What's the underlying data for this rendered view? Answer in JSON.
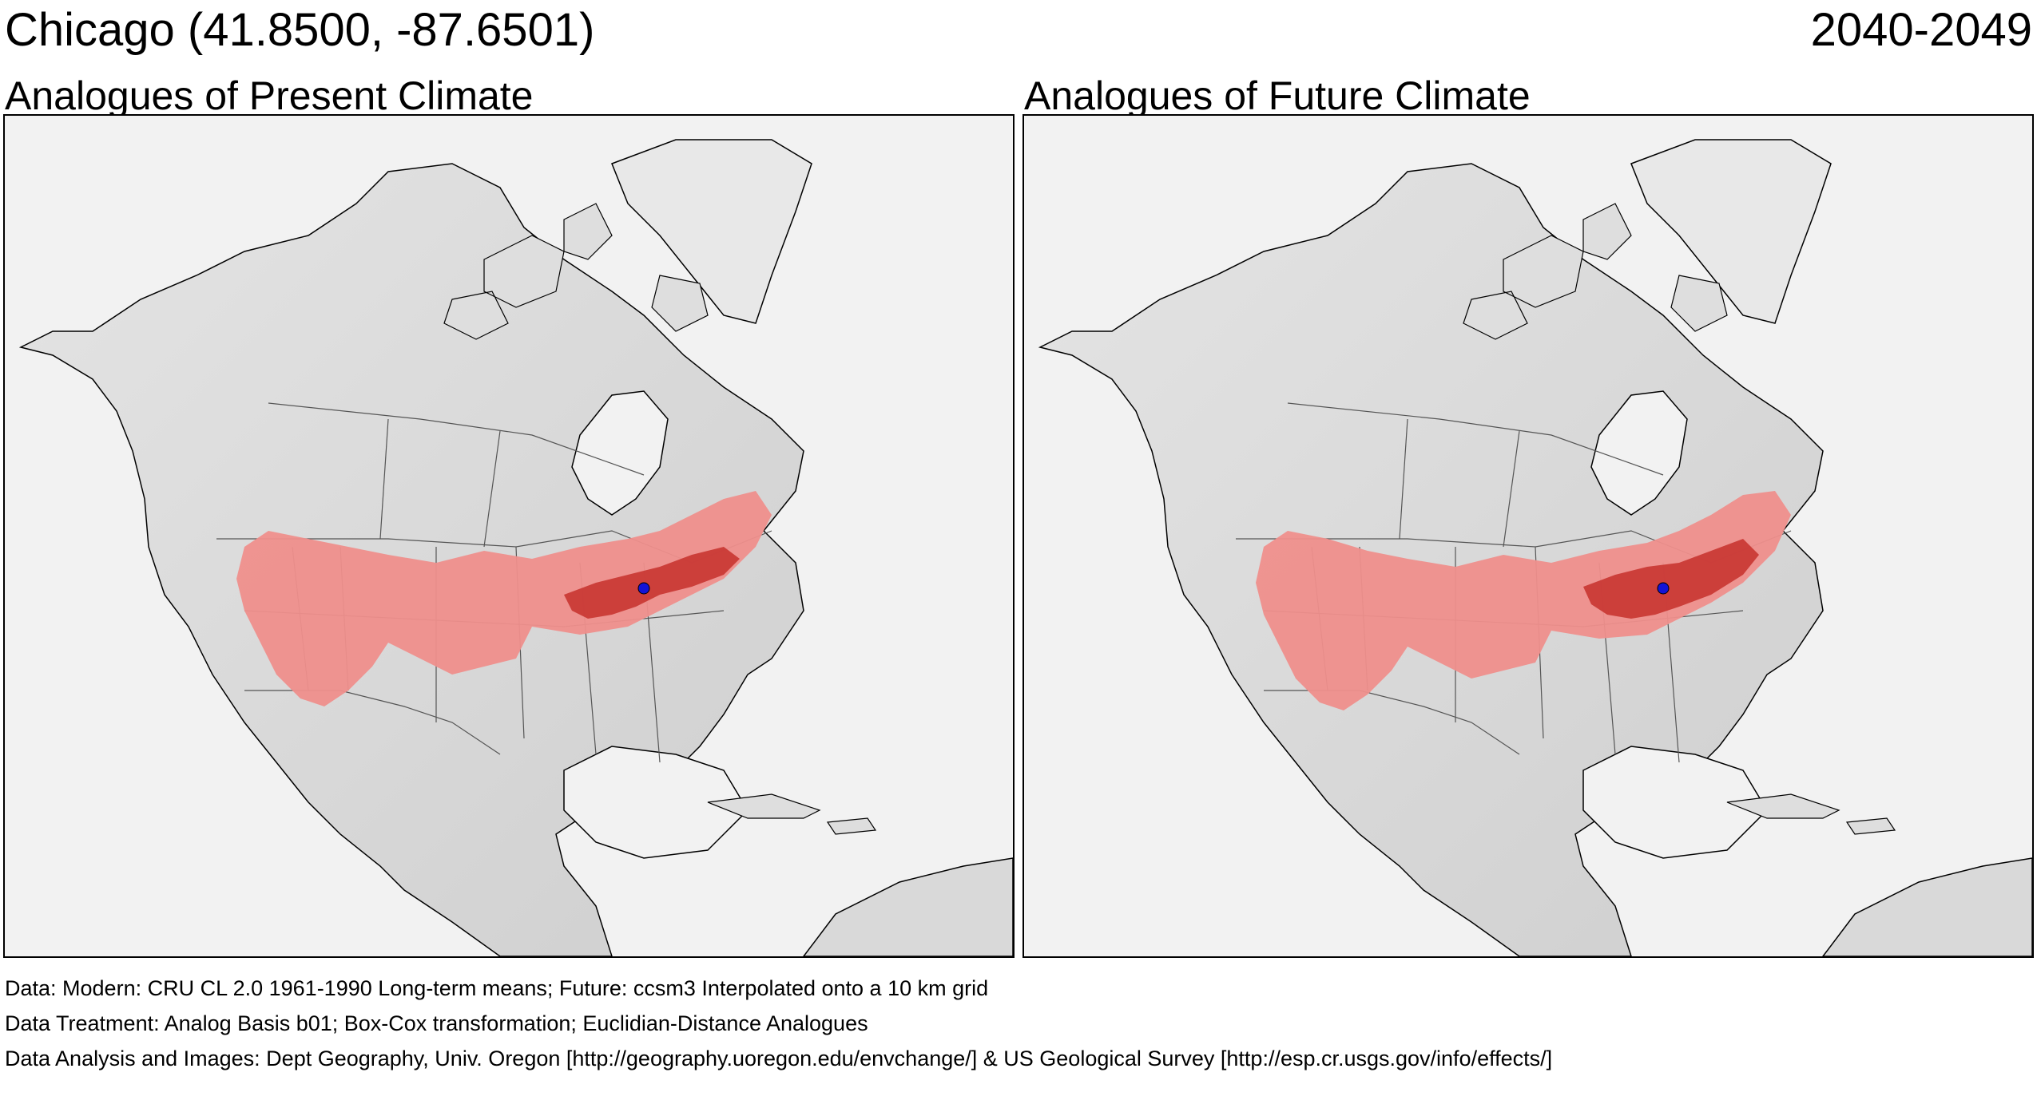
{
  "header": {
    "location": "Chicago  (41.8500, -87.6501)",
    "period": "2040-2049"
  },
  "panels": [
    {
      "id": "present",
      "title": "Analogues of Present Climate"
    },
    {
      "id": "future",
      "title": "Analogues of Future Climate"
    }
  ],
  "footer": {
    "line1": "Data:  Modern: CRU CL 2.0 1961-1990 Long-term means; Future: ccsm3 Interpolated onto a 10 km grid",
    "line2": "Data Treatment:  Analog Basis b01; Box-Cox transformation; Euclidian-Distance Analogues",
    "line3": "Data Analysis and Images:  Dept Geography, Univ. Oregon [http://geography.uoregon.edu/envchange/] & US Geological Survey [http://esp.cr.usgs.gov/info/effects/]"
  },
  "colors": {
    "land": "#d9d9d9",
    "ocean": "#f2f2f2",
    "analog_light": "#ef8f8c",
    "analog_dark": "#c93a36",
    "marker": "#1313d6"
  }
}
